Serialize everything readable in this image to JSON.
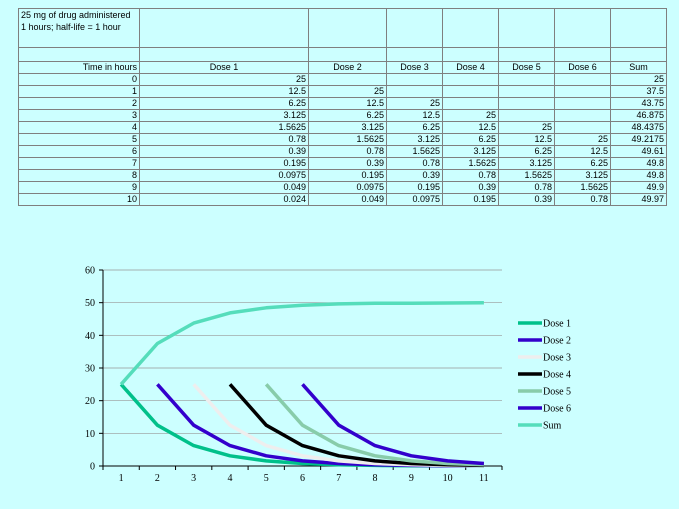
{
  "table": {
    "title": "25 mg of drug administered 1 hours; half-life = 1 hour",
    "headers": [
      "Time in hours",
      "Dose 1",
      "Dose 2",
      "Dose 3",
      "Dose 4",
      "Dose 5",
      "Dose 6",
      "Sum"
    ],
    "rows": [
      [
        "0",
        "25",
        "",
        "",
        "",
        "",
        "",
        "25"
      ],
      [
        "1",
        "12.5",
        "25",
        "",
        "",
        "",
        "",
        "37.5"
      ],
      [
        "2",
        "6.25",
        "12.5",
        "25",
        "",
        "",
        "",
        "43.75"
      ],
      [
        "3",
        "3.125",
        "6.25",
        "12.5",
        "25",
        "",
        "",
        "46.875"
      ],
      [
        "4",
        "1.5625",
        "3.125",
        "6.25",
        "12.5",
        "25",
        "",
        "48.4375"
      ],
      [
        "5",
        "0.78",
        "1.5625",
        "3.125",
        "6.25",
        "12.5",
        "25",
        "49.2175"
      ],
      [
        "6",
        "0.39",
        "0.78",
        "1.5625",
        "3.125",
        "6.25",
        "12.5",
        "49.61"
      ],
      [
        "7",
        "0.195",
        "0.39",
        "0.78",
        "1.5625",
        "3.125",
        "6.25",
        "49.8"
      ],
      [
        "8",
        "0.0975",
        "0.195",
        "0.39",
        "0.78",
        "1.5625",
        "3.125",
        "49.8"
      ],
      [
        "9",
        "0.049",
        "0.0975",
        "0.195",
        "0.39",
        "0.78",
        "1.5625",
        "49.9"
      ],
      [
        "10",
        "0.024",
        "0.049",
        "0.0975",
        "0.195",
        "0.39",
        "0.78",
        "49.97"
      ]
    ]
  },
  "chart_data": {
    "type": "line",
    "title": "",
    "xlabel": "",
    "ylabel": "",
    "x": [
      1,
      2,
      3,
      4,
      5,
      6,
      7,
      8,
      9,
      10,
      11
    ],
    "ylim": [
      0,
      60
    ],
    "yticks": [
      0,
      10,
      20,
      30,
      40,
      50,
      60
    ],
    "grid": "horizontal",
    "legend": "right",
    "series": [
      {
        "name": "Dose 1",
        "color": "#00c08a",
        "values": [
          25,
          12.5,
          6.25,
          3.125,
          1.5625,
          0.78,
          0.39,
          0.195,
          0.0975,
          0.049,
          0.024
        ]
      },
      {
        "name": "Dose 2",
        "color": "#3300cc",
        "values": [
          null,
          25,
          12.5,
          6.25,
          3.125,
          1.5625,
          0.78,
          0.39,
          0.195,
          0.0975,
          0.049
        ]
      },
      {
        "name": "Dose 3",
        "color": "#eeeeee",
        "values": [
          null,
          null,
          25,
          12.5,
          6.25,
          3.125,
          1.5625,
          0.78,
          0.39,
          0.195,
          0.0975
        ]
      },
      {
        "name": "Dose 4",
        "color": "#000000",
        "values": [
          null,
          null,
          null,
          25,
          12.5,
          6.25,
          3.125,
          1.5625,
          0.78,
          0.39,
          0.195
        ]
      },
      {
        "name": "Dose 5",
        "color": "#88ccaa",
        "values": [
          null,
          null,
          null,
          null,
          25,
          12.5,
          6.25,
          3.125,
          1.5625,
          0.78,
          0.39
        ]
      },
      {
        "name": "Dose 6",
        "color": "#3300cc",
        "values": [
          null,
          null,
          null,
          null,
          null,
          25,
          12.5,
          6.25,
          3.125,
          1.5625,
          0.78
        ]
      },
      {
        "name": "Sum",
        "color": "#55ddbb",
        "values": [
          25,
          37.5,
          43.75,
          46.875,
          48.4375,
          49.2175,
          49.61,
          49.8,
          49.8,
          49.9,
          49.97
        ]
      }
    ]
  }
}
